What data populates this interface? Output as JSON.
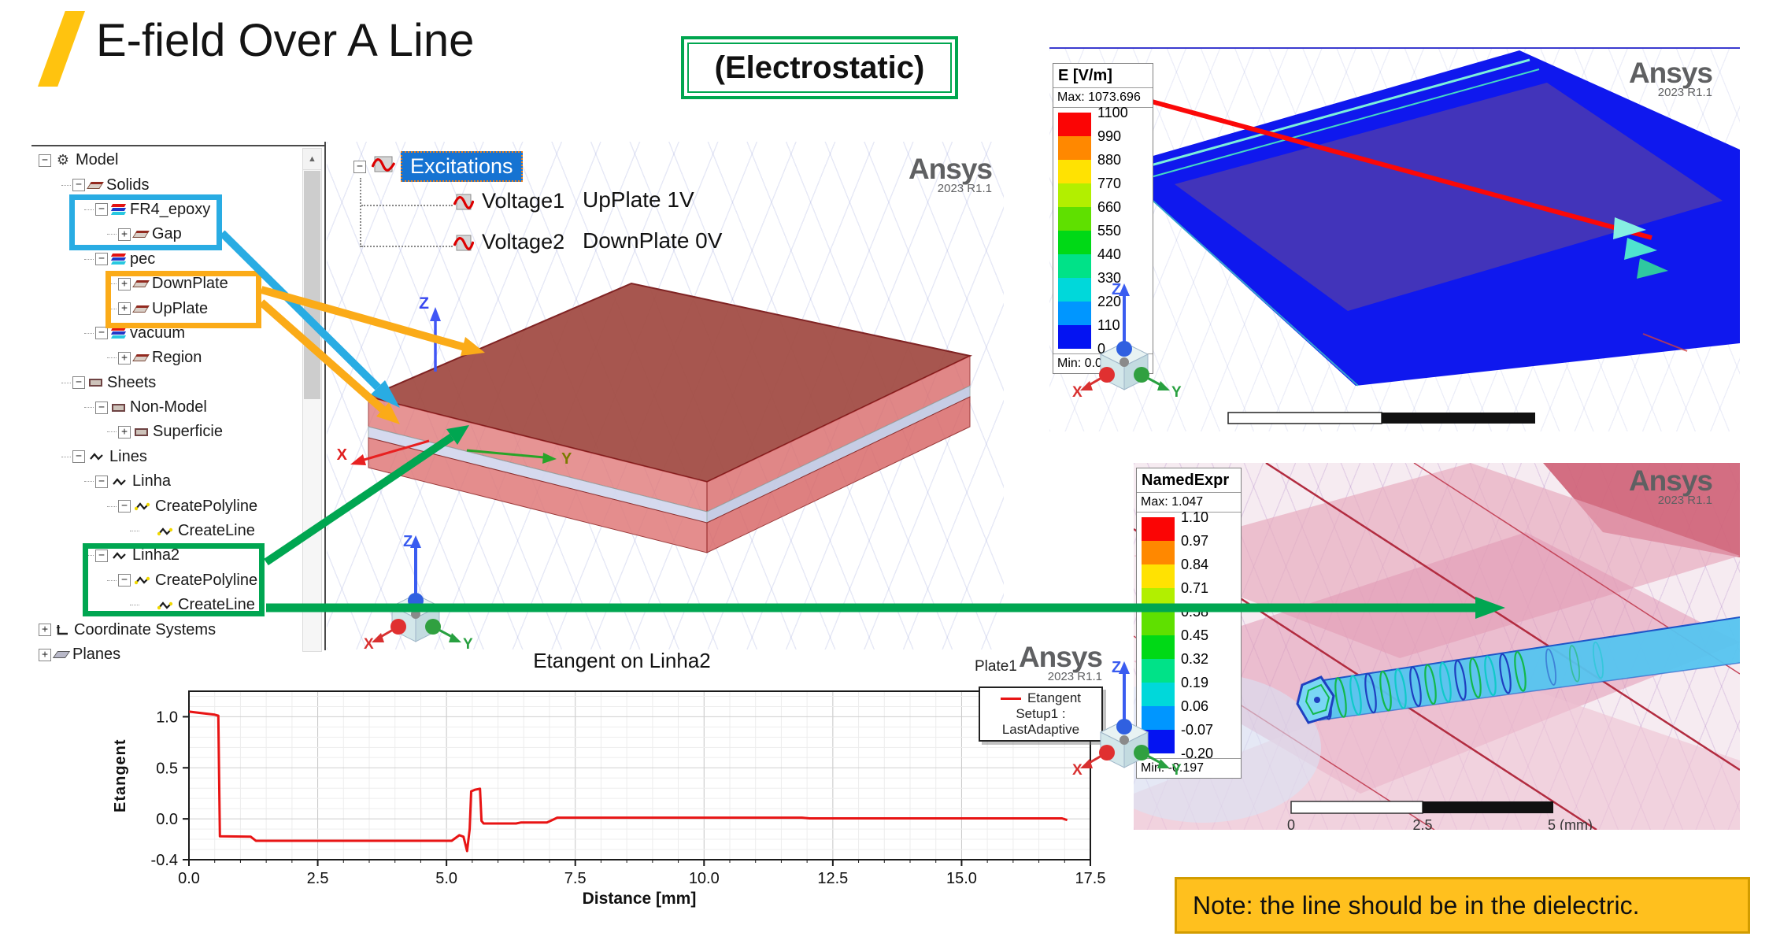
{
  "header": {
    "title": "E-field Over A Line",
    "badge": "(Electrostatic)",
    "accent_color": "#FFC30F",
    "badge_border": "#00A64F"
  },
  "model_tree": {
    "items": [
      {
        "label": "Model",
        "level": 0,
        "icon": "model",
        "exp": "-"
      },
      {
        "label": "Solids",
        "level": 1,
        "icon": "part",
        "exp": "-"
      },
      {
        "label": "FR4_epoxy",
        "level": 2,
        "icon": "stack",
        "exp": "-"
      },
      {
        "label": "Gap",
        "level": 3,
        "icon": "part",
        "exp": "+"
      },
      {
        "label": "pec",
        "level": 2,
        "icon": "stack",
        "exp": "-"
      },
      {
        "label": "DownPlate",
        "level": 3,
        "icon": "part",
        "exp": "+"
      },
      {
        "label": "UpPlate",
        "level": 3,
        "icon": "part",
        "exp": "+"
      },
      {
        "label": "vacuum",
        "level": 2,
        "icon": "stack",
        "exp": "-"
      },
      {
        "label": "Region",
        "level": 3,
        "icon": "part",
        "exp": "+"
      },
      {
        "label": "Sheets",
        "level": 1,
        "icon": "sheet",
        "exp": "-"
      },
      {
        "label": "Non-Model",
        "level": 2,
        "icon": "sheet",
        "exp": "-"
      },
      {
        "label": "Superficie",
        "level": 3,
        "icon": "sheet",
        "exp": "+"
      },
      {
        "label": "Lines",
        "level": 1,
        "icon": "line",
        "exp": "-"
      },
      {
        "label": "Linha",
        "level": 2,
        "icon": "line",
        "exp": "-"
      },
      {
        "label": "CreatePolyline",
        "level": 3,
        "icon": "polyline",
        "exp": "-"
      },
      {
        "label": "CreateLine",
        "level": 4,
        "icon": "polyline",
        "exp": ""
      },
      {
        "label": "Linha2",
        "level": 2,
        "icon": "line",
        "exp": "-"
      },
      {
        "label": "CreatePolyline",
        "level": 3,
        "icon": "polyline",
        "exp": "-"
      },
      {
        "label": "CreateLine",
        "level": 4,
        "icon": "polyline",
        "exp": ""
      },
      {
        "label": "Coordinate Systems",
        "level": 0,
        "icon": "csys",
        "exp": "+"
      },
      {
        "label": "Planes",
        "level": 0,
        "icon": "plane",
        "exp": "+"
      }
    ]
  },
  "excitations": {
    "root": "Excitations",
    "items": [
      {
        "label": "Voltage1",
        "value": "UpPlate 1V"
      },
      {
        "label": "Voltage2",
        "value": "DownPlate 0V"
      }
    ]
  },
  "viewport": {
    "logo": "Ansys",
    "version": "2023 R1.1",
    "axis_x": "X",
    "axis_y": "Y",
    "axis_z": "Z"
  },
  "efield_legend": {
    "title": "E [V/m]",
    "max": "Max: 1073.696",
    "min": "Min: 0.000",
    "values": [
      "1100",
      "990",
      "880",
      "770",
      "660",
      "550",
      "440",
      "330",
      "220",
      "110",
      "0"
    ],
    "colors": [
      "#fb0505",
      "#ff8800",
      "#ffe202",
      "#b2ef00",
      "#5fe000",
      "#00d916",
      "#00e288",
      "#00d8da",
      "#0096ff",
      "#0413f2"
    ]
  },
  "namedexpr_legend": {
    "title": "NamedExpr",
    "max": "Max: 1.047",
    "min": "Min: -0.197",
    "values": [
      "1.10",
      "0.97",
      "0.84",
      "0.71",
      "0.58",
      "0.45",
      "0.32",
      "0.19",
      "0.06",
      "-0.07",
      "-0.20"
    ],
    "colors": [
      "#fb0505",
      "#ff8800",
      "#ffe202",
      "#b2ef00",
      "#5fe000",
      "#00d916",
      "#00e288",
      "#00d8da",
      "#0096ff",
      "#0413f2"
    ]
  },
  "scalebar": {
    "start": "0",
    "mid": "2.5",
    "end": "5 (mm)"
  },
  "chart_data": {
    "type": "line",
    "title": "Etangent on Linha2",
    "xlabel": "Distance [mm]",
    "ylabel": "Etangent",
    "xlim": [
      0,
      17.5
    ],
    "ylim": [
      -0.4,
      1.25
    ],
    "x_ticks": [
      "0.0",
      "2.5",
      "5.0",
      "7.5",
      "10.0",
      "12.5",
      "15.0",
      "17.5"
    ],
    "y_ticks": [
      "1.0",
      "0.5",
      "0.0",
      "-0.4"
    ],
    "grid": true,
    "legend_position": "top-right",
    "legend": {
      "series": "Etangent",
      "setup": "Setup1 : LastAdaptive"
    },
    "annotations": {
      "plate": "Plate1",
      "logo": "Ansys",
      "version": "2023 R1.1"
    },
    "series": [
      {
        "name": "Etangent",
        "color": "#e81414",
        "points": [
          [
            0,
            1.05
          ],
          [
            0.5,
            1.02
          ],
          [
            0.57,
            1.01
          ],
          [
            0.6,
            -0.17
          ],
          [
            1.2,
            -0.175
          ],
          [
            1.3,
            -0.215
          ],
          [
            5.1,
            -0.215
          ],
          [
            5.25,
            -0.16
          ],
          [
            5.33,
            -0.175
          ],
          [
            5.4,
            -0.315
          ],
          [
            5.45,
            -0.1
          ],
          [
            5.48,
            0.27
          ],
          [
            5.55,
            0.285
          ],
          [
            5.65,
            0.295
          ],
          [
            5.68,
            -0.02
          ],
          [
            5.72,
            -0.045
          ],
          [
            6.35,
            -0.045
          ],
          [
            6.45,
            -0.035
          ],
          [
            6.95,
            -0.035
          ],
          [
            7.05,
            -0.012
          ],
          [
            7.15,
            0.012
          ],
          [
            11.9,
            0.012
          ],
          [
            12.05,
            0.005
          ],
          [
            16.95,
            0.005
          ],
          [
            17.05,
            -0.012
          ]
        ]
      }
    ]
  },
  "note": {
    "text": "Note: the line should be in the dielectric.",
    "bg": "#FFC01E",
    "border": "#D29C00"
  }
}
